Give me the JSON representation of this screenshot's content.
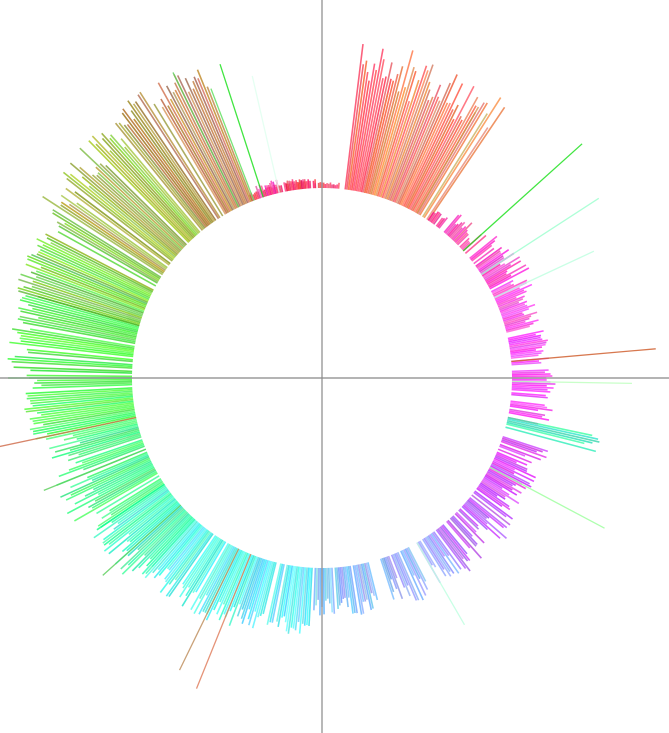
{
  "chart_data": {
    "type": "radial-bar",
    "title": "",
    "description": "",
    "axis_color": "#888888",
    "bar_count": 720,
    "segments": [
      {
        "color": "#ff2040",
        "kind": "stub",
        "start_deg": 248,
        "end_deg": 268,
        "len_min": 6,
        "len_max": 10
      },
      {
        "color": "#ff3050",
        "kind": "stub",
        "start_deg": 268,
        "end_deg": 275,
        "len_min": 3,
        "len_max": 6
      },
      {
        "color": "#ff3a3a",
        "kind": "tall",
        "start_deg": 277,
        "end_deg": 283,
        "len_min": 110,
        "len_max": 150
      },
      {
        "color": "#f0643c",
        "kind": "tall",
        "start_deg": 283,
        "end_deg": 300,
        "len_min": 100,
        "len_max": 150
      },
      {
        "color": "#e68a50",
        "kind": "tall",
        "start_deg": 300,
        "end_deg": 304,
        "len_min": 110,
        "len_max": 145
      },
      {
        "color": "#ff2090",
        "kind": "stub",
        "start_deg": 304,
        "end_deg": 308,
        "len_min": 10,
        "len_max": 14
      },
      {
        "color": "#ff20a0",
        "kind": "stub",
        "start_deg": 310,
        "end_deg": 319,
        "len_min": 10,
        "len_max": 28
      },
      {
        "color": "#ff20c0",
        "kind": "stub",
        "start_deg": 321,
        "end_deg": 332,
        "len_min": 20,
        "len_max": 45
      },
      {
        "color": "#ff30e0",
        "kind": "stub",
        "start_deg": 333,
        "end_deg": 346,
        "len_min": 20,
        "len_max": 40
      },
      {
        "color": "#ff20ff",
        "kind": "stub",
        "start_deg": 348,
        "end_deg": 356,
        "len_min": 25,
        "len_max": 40
      },
      {
        "color": "#ff10ff",
        "kind": "stub",
        "start_deg": 358,
        "end_deg": 365,
        "len_min": 30,
        "len_max": 45
      },
      {
        "color": "#ff20f0",
        "kind": "stub",
        "start_deg": 367,
        "end_deg": 372,
        "len_min": 28,
        "len_max": 45
      },
      {
        "color": "#30f0b0",
        "kind": "stub",
        "start_deg": 372,
        "end_deg": 375,
        "len_min": 80,
        "len_max": 95
      },
      {
        "color": "#d020ff",
        "kind": "stub",
        "start_deg": 378,
        "end_deg": 398,
        "len_min": 20,
        "len_max": 50
      },
      {
        "color": "#b040ff",
        "kind": "stub",
        "start_deg": 398,
        "end_deg": 413,
        "len_min": 25,
        "len_max": 55
      },
      {
        "color": "#9090ff",
        "kind": "stub",
        "start_deg": 414,
        "end_deg": 420,
        "len_min": 20,
        "len_max": 55
      },
      {
        "color": "#7aa0ff",
        "kind": "stub",
        "start_deg": 423,
        "end_deg": 432,
        "len_min": 20,
        "len_max": 55
      },
      {
        "color": "#70a8ff",
        "kind": "stub",
        "start_deg": 436,
        "end_deg": 446,
        "len_min": 30,
        "len_max": 50
      },
      {
        "color": "#60c0ff",
        "kind": "stub",
        "start_deg": 447,
        "end_deg": 452,
        "len_min": 30,
        "len_max": 50
      },
      {
        "color": "#40e8ff",
        "kind": "stub",
        "start_deg": 453,
        "end_deg": 470,
        "len_min": 50,
        "len_max": 70
      },
      {
        "color": "#30ffe0",
        "kind": "stub",
        "start_deg": 470,
        "end_deg": 492,
        "len_min": 55,
        "len_max": 80
      },
      {
        "color": "#20ffb0",
        "kind": "stub",
        "start_deg": 492,
        "end_deg": 506,
        "len_min": 55,
        "len_max": 90
      },
      {
        "color": "#20ff70",
        "kind": "stub",
        "start_deg": 506,
        "end_deg": 528,
        "len_min": 60,
        "len_max": 100
      },
      {
        "color": "#30ff40",
        "kind": "stub",
        "start_deg": 528,
        "end_deg": 540,
        "len_min": 90,
        "len_max": 110
      },
      {
        "color": "#30f020",
        "kind": "stub",
        "start_deg": 540,
        "end_deg": 556,
        "len_min": 100,
        "len_max": 125
      },
      {
        "color": "#60d020",
        "kind": "stub",
        "start_deg": 556,
        "end_deg": 572,
        "len_min": 110,
        "len_max": 130
      },
      {
        "color": "#90b020",
        "kind": "stub",
        "start_deg": 573,
        "end_deg": 590,
        "len_min": 110,
        "len_max": 145
      },
      {
        "color": "#a08010",
        "kind": "stub",
        "start_deg": 591,
        "end_deg": 596,
        "len_min": 125,
        "len_max": 150
      },
      {
        "color": "#b07030",
        "kind": "stub",
        "start_deg": 597,
        "end_deg": 609,
        "len_min": 120,
        "len_max": 150
      },
      {
        "color": "#ff30a0",
        "kind": "stub",
        "start_deg": 611,
        "end_deg": 617,
        "len_min": 8,
        "len_max": 14
      },
      {
        "color": "#ff3060",
        "kind": "stub",
        "start_deg": 619,
        "end_deg": 626,
        "len_min": 6,
        "len_max": 12
      }
    ],
    "outliers": [
      {
        "angle_deg": 318,
        "color": "#20e020",
        "length": 160
      },
      {
        "angle_deg": 327,
        "color": "#a0ffd0",
        "length": 140
      },
      {
        "angle_deg": 335,
        "color": "#c0ffe0",
        "length": 110
      },
      {
        "angle_deg": 355,
        "color": "#d06030",
        "length": 145
      },
      {
        "angle_deg": 361,
        "color": "#c0ffc0",
        "length": 120
      },
      {
        "angle_deg": 388,
        "color": "#a0ffa0",
        "length": 130
      },
      {
        "angle_deg": 420,
        "color": "#c0ffe0",
        "length": 95
      },
      {
        "angle_deg": 472,
        "color": "#e08060",
        "length": 145
      },
      {
        "angle_deg": 476,
        "color": "#c09060",
        "length": 135
      },
      {
        "angle_deg": 498,
        "color": "#60d060",
        "length": 105
      },
      {
        "angle_deg": 518,
        "color": "#60d060",
        "length": 110
      },
      {
        "angle_deg": 528,
        "color": "#d07050",
        "length": 140
      },
      {
        "angle_deg": 540,
        "color": "#d0ffd0",
        "length": 115
      },
      {
        "angle_deg": 604,
        "color": "#60d060",
        "length": 150
      },
      {
        "angle_deg": 609,
        "color": "#60e060",
        "length": 120
      },
      {
        "angle_deg": 612,
        "color": "#20e020",
        "length": 140
      },
      {
        "angle_deg": 617,
        "color": "#e0fff0",
        "length": 120
      }
    ]
  }
}
